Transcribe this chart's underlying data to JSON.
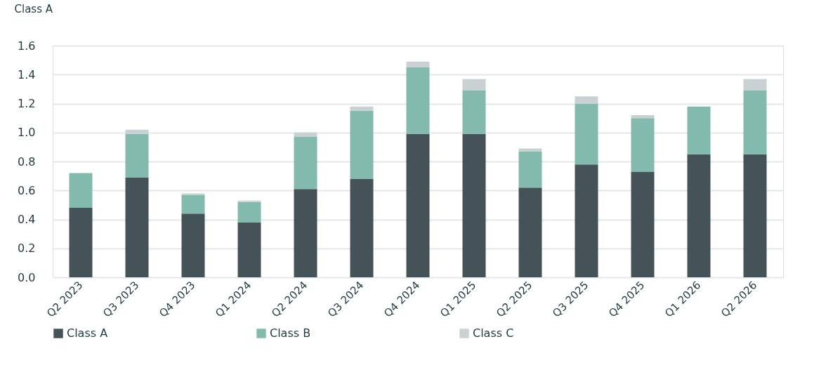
{
  "chart_data": {
    "type": "bar",
    "stacked": true,
    "ylabel": "Class A",
    "categories": [
      "Q2 2023",
      "Q3 2023",
      "Q4 2023",
      "Q1 2024",
      "Q2 2024",
      "Q3 2024",
      "Q4 2024",
      "Q1 2025",
      "Q2 2025",
      "Q3 2025",
      "Q4 2025",
      "Q1 2026",
      "Q2 2026"
    ],
    "series": [
      {
        "name": "Class A",
        "color": "#435357",
        "values": [
          0.48,
          0.69,
          0.44,
          0.38,
          0.61,
          0.68,
          0.99,
          0.99,
          0.62,
          0.78,
          0.73,
          0.85,
          0.85
        ]
      },
      {
        "name": "Class B",
        "color": "#82bbad",
        "values": [
          0.24,
          0.3,
          0.13,
          0.14,
          0.36,
          0.47,
          0.46,
          0.3,
          0.25,
          0.42,
          0.37,
          0.33,
          0.44
        ]
      },
      {
        "name": "Class C",
        "color": "#cad1d3",
        "values": [
          0,
          0.03,
          0.01,
          0.01,
          0.03,
          0.03,
          0.04,
          0.08,
          0.02,
          0.05,
          0.02,
          0,
          0.08
        ]
      }
    ],
    "ylim": [
      0,
      1.6
    ],
    "yticks": [
      {
        "value": 0,
        "label": "0.0"
      },
      0.2,
      0.4,
      0.6,
      0.8,
      {
        "value": 1,
        "label": "1.0"
      },
      1.2,
      1.4,
      1.6
    ],
    "grid": "y",
    "legend": "bottom"
  }
}
